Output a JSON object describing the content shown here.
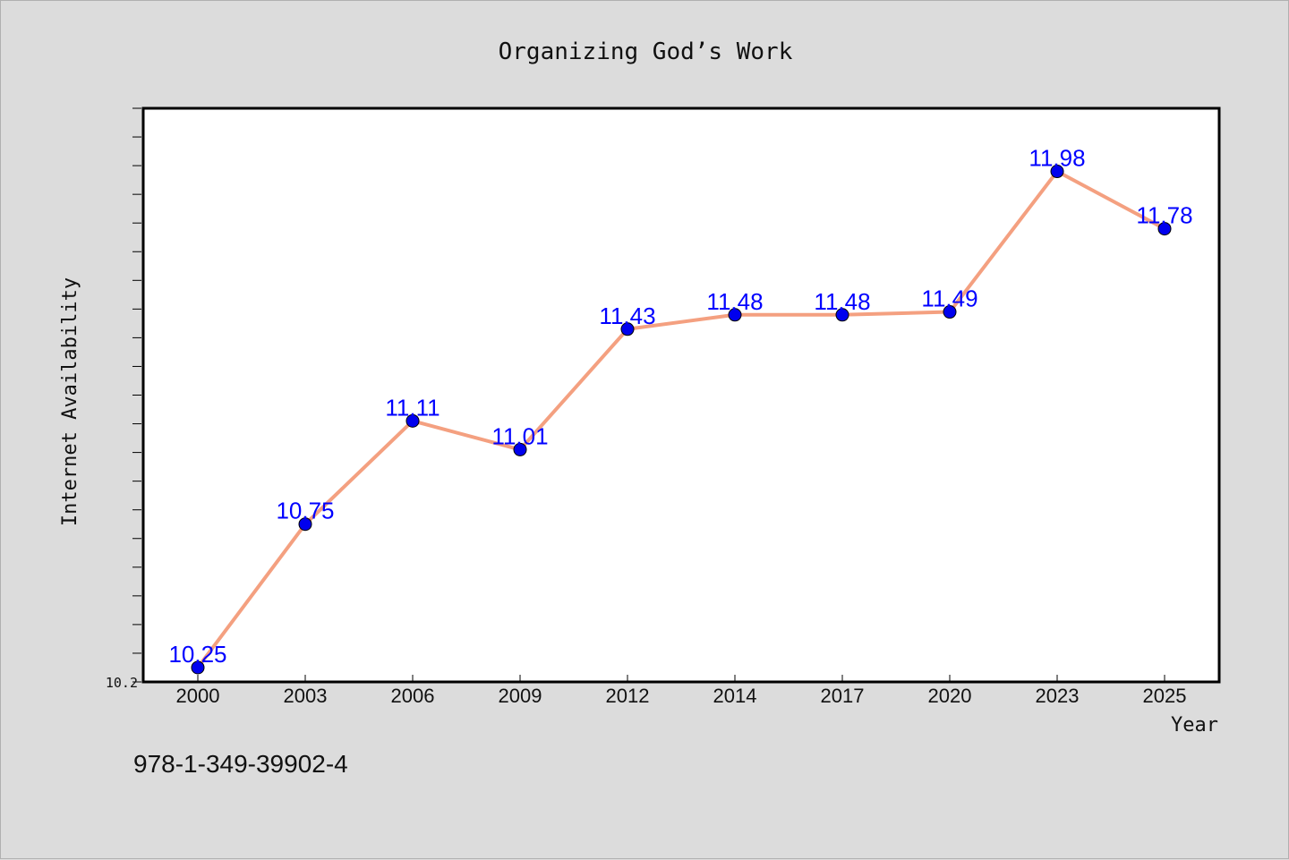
{
  "chart_data": {
    "type": "line",
    "title": "Organizing God’s Work",
    "xlabel": "Year",
    "ylabel": "Internet Availability",
    "categories": [
      "2000",
      "2003",
      "2006",
      "2009",
      "2012",
      "2014",
      "2017",
      "2020",
      "2023",
      "2025"
    ],
    "series": [
      {
        "values": [
          10.25,
          10.75,
          11.11,
          11.01,
          11.43,
          11.48,
          11.48,
          11.49,
          11.98,
          11.78
        ],
        "data_labels": [
          "10.25",
          "10.75",
          "11.11",
          "11.01",
          "11.43",
          "11.48",
          "11.48",
          "11.49",
          "11.98",
          "11.78"
        ],
        "line_color": "#f4a080",
        "marker_color": "#0000ee"
      }
    ],
    "ylim": [
      10.2,
      12.2
    ],
    "yticks_labeled": [
      "10.2"
    ],
    "y_minor_tick_step": 0.1,
    "grid": false,
    "legend": "none",
    "data_label_color": "#0000ff"
  },
  "footer": {
    "isbn": "978-1-349-39902-4"
  },
  "colors": {
    "background": "#dcdcdc",
    "plot_background": "#ffffff",
    "axis": "#000000"
  }
}
